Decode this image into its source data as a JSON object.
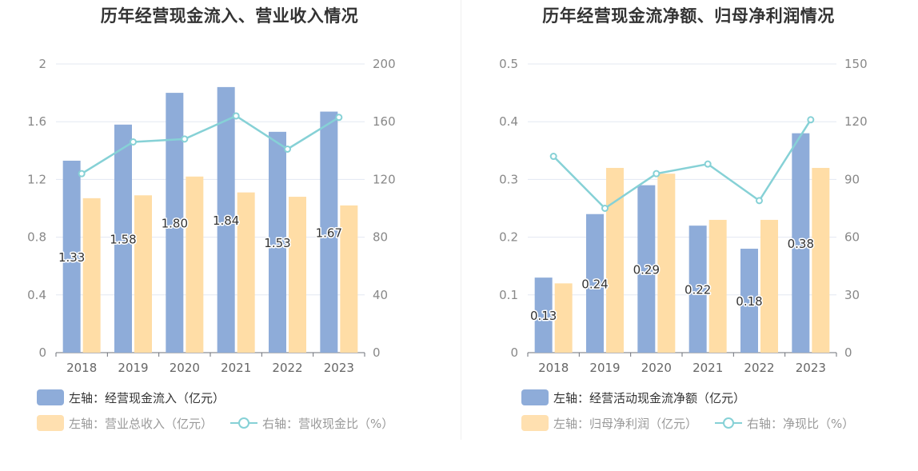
{
  "chart_data": [
    {
      "type": "bar",
      "title": "历年经营现金流入、营业收入情况",
      "categories": [
        "2018",
        "2019",
        "2020",
        "2021",
        "2022",
        "2023"
      ],
      "series": [
        {
          "name": "左轴：经营现金流入（亿元）",
          "axis": "left",
          "type": "bar",
          "color": "#8eacd9",
          "values": [
            1.33,
            1.58,
            1.8,
            1.84,
            1.53,
            1.67
          ],
          "labels": [
            "1.33",
            "1.58",
            "1.80",
            "1.84",
            "1.53",
            "1.67"
          ]
        },
        {
          "name": "左轴：营业总收入（亿元）",
          "axis": "left",
          "type": "bar",
          "color": "#ffdda6",
          "values": [
            1.07,
            1.09,
            1.22,
            1.11,
            1.08,
            1.02
          ]
        },
        {
          "name": "右轴：营收现金比（%）",
          "axis": "right",
          "type": "line",
          "color": "#86d1d6",
          "values": [
            124,
            146,
            148,
            164,
            141,
            163
          ]
        }
      ],
      "y_left": {
        "min": 0,
        "max": 2,
        "ticks": [
          "0",
          "0.4",
          "0.8",
          "1.2",
          "1.6",
          "2"
        ]
      },
      "y_right": {
        "min": 0,
        "max": 200,
        "ticks": [
          "0",
          "40",
          "80",
          "120",
          "160",
          "200"
        ]
      },
      "grid": true,
      "legend_position": "bottom-left"
    },
    {
      "type": "bar",
      "title": "历年经营现金流净额、归母净利润情况",
      "categories": [
        "2018",
        "2019",
        "2020",
        "2021",
        "2022",
        "2023"
      ],
      "series": [
        {
          "name": "左轴：经营活动现金流净额（亿元）",
          "axis": "left",
          "type": "bar",
          "color": "#8eacd9",
          "values": [
            0.13,
            0.24,
            0.29,
            0.22,
            0.18,
            0.38
          ],
          "labels": [
            "0.13",
            "0.24",
            "0.29",
            "0.22",
            "0.18",
            "0.38"
          ]
        },
        {
          "name": "左轴：归母净利润（亿元）",
          "axis": "left",
          "type": "bar",
          "color": "#ffdda6",
          "values": [
            0.12,
            0.32,
            0.31,
            0.23,
            0.23,
            0.32
          ]
        },
        {
          "name": "右轴：净现比（%）",
          "axis": "right",
          "type": "line",
          "color": "#86d1d6",
          "values": [
            102,
            75,
            93,
            98,
            79,
            121
          ]
        }
      ],
      "y_left": {
        "min": 0,
        "max": 0.5,
        "ticks": [
          "0",
          "0.1",
          "0.2",
          "0.3",
          "0.4",
          "0.5"
        ]
      },
      "y_right": {
        "min": 0,
        "max": 150,
        "ticks": [
          "0",
          "30",
          "60",
          "90",
          "120",
          "150"
        ]
      },
      "grid": true,
      "legend_position": "bottom-left"
    }
  ]
}
